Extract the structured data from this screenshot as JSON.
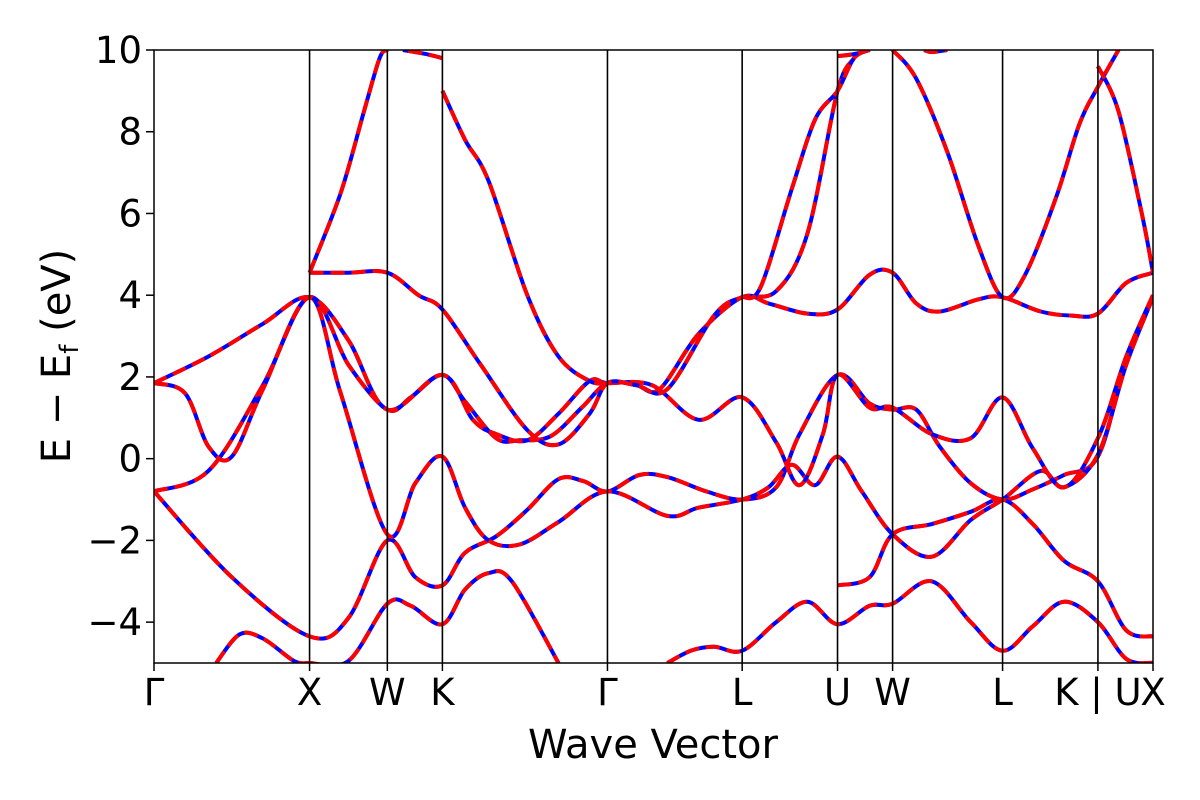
{
  "chart_data": {
    "type": "line",
    "xlabel": "Wave Vector",
    "ylabel_main": "E − E",
    "ylabel_sub": "f",
    "ylabel_unit": " (eV)",
    "ylim": [
      -5,
      10
    ],
    "yticks": [
      -4,
      -2,
      0,
      2,
      4,
      6,
      8,
      10
    ],
    "ytick_labels": [
      "−4",
      "−2",
      "0",
      "2",
      "4",
      "6",
      "8",
      "10"
    ],
    "kpath": [
      {
        "label": "Γ",
        "k": 0.0
      },
      {
        "label": "X",
        "k": 1.0
      },
      {
        "label": "W",
        "k": 1.5
      },
      {
        "label": "K",
        "k": 1.854
      },
      {
        "label": "Γ",
        "k": 2.915
      },
      {
        "label": "L",
        "k": 3.781
      },
      {
        "label": "U",
        "k": 4.394
      },
      {
        "label": "W",
        "k": 4.748
      },
      {
        "label": "L",
        "k": 5.455
      },
      {
        "label": "K | U",
        "k": 6.068
      },
      {
        "label": "X",
        "k": 6.422
      }
    ],
    "grid": false,
    "legend": "none",
    "series_styles": [
      {
        "color": "#0000ff",
        "linestyle": "solid"
      },
      {
        "color": "#ff0000",
        "linestyle": "dashed"
      }
    ],
    "bands": [
      {
        "points": [
          [
            0.0,
            -0.8
          ],
          [
            0.5,
            -2.9
          ],
          [
            1.0,
            -4.35
          ],
          [
            1.25,
            -3.9
          ],
          [
            1.5,
            -2.0
          ],
          [
            1.68,
            -2.9
          ],
          [
            1.854,
            -3.1
          ],
          [
            2.0,
            -2.3
          ],
          [
            2.2,
            -1.9
          ],
          [
            2.4,
            -1.25
          ],
          [
            2.6,
            -0.5
          ],
          [
            2.76,
            -0.55
          ],
          [
            2.915,
            -0.8
          ],
          [
            3.12,
            -0.4
          ],
          [
            3.3,
            -0.45
          ],
          [
            3.55,
            -0.8
          ],
          [
            3.781,
            -1.0
          ],
          [
            4.0,
            -0.7
          ],
          [
            4.15,
            0.6
          ],
          [
            4.394,
            2.05
          ],
          [
            4.6,
            1.35
          ],
          [
            4.748,
            1.2
          ],
          [
            4.9,
            1.2
          ],
          [
            5.05,
            0.3
          ],
          [
            5.25,
            -0.6
          ],
          [
            5.455,
            -1.0
          ],
          [
            5.65,
            -0.75
          ],
          [
            5.85,
            -0.4
          ],
          [
            6.068,
            0.05
          ],
          [
            6.25,
            2.4
          ],
          [
            6.422,
            4.0
          ]
        ]
      },
      {
        "points": [
          [
            0.0,
            -0.8
          ],
          [
            0.35,
            -0.3
          ],
          [
            0.7,
            1.8
          ],
          [
            1.0,
            3.95
          ],
          [
            1.25,
            2.3
          ],
          [
            1.5,
            1.2
          ],
          [
            1.65,
            1.5
          ],
          [
            1.854,
            2.05
          ],
          [
            2.0,
            1.4
          ],
          [
            2.2,
            0.5
          ],
          [
            2.35,
            0.45
          ],
          [
            2.55,
            0.55
          ],
          [
            2.75,
            1.25
          ],
          [
            2.915,
            1.85
          ],
          [
            3.1,
            1.8
          ],
          [
            3.25,
            1.7
          ],
          [
            3.5,
            3.05
          ],
          [
            3.781,
            3.95
          ],
          [
            3.95,
            3.8
          ],
          [
            4.2,
            3.55
          ],
          [
            4.394,
            3.65
          ],
          [
            4.6,
            4.5
          ],
          [
            4.748,
            4.55
          ],
          [
            4.9,
            3.8
          ],
          [
            5.05,
            3.6
          ],
          [
            5.3,
            3.9
          ],
          [
            5.455,
            3.95
          ],
          [
            5.7,
            3.6
          ],
          [
            5.9,
            3.5
          ],
          [
            6.068,
            3.55
          ],
          [
            6.25,
            4.3
          ],
          [
            6.422,
            4.55
          ]
        ]
      },
      {
        "points": [
          [
            0.0,
            1.85
          ],
          [
            0.2,
            1.6
          ],
          [
            0.35,
            0.3
          ],
          [
            0.5,
            0.05
          ],
          [
            0.7,
            1.7
          ],
          [
            1.0,
            3.95
          ],
          [
            1.2,
            1.6
          ],
          [
            1.5,
            -1.85
          ],
          [
            1.68,
            -0.6
          ],
          [
            1.854,
            0.05
          ],
          [
            2.0,
            -1.2
          ],
          [
            2.15,
            -2.0
          ],
          [
            2.35,
            -2.1
          ],
          [
            2.6,
            -1.55
          ],
          [
            2.915,
            -0.8
          ],
          [
            3.3,
            -1.4
          ],
          [
            3.5,
            -1.2
          ],
          [
            3.781,
            -1.0
          ],
          [
            3.95,
            -0.7
          ],
          [
            4.1,
            -0.15
          ],
          [
            4.25,
            -0.65
          ],
          [
            4.394,
            0.05
          ],
          [
            4.55,
            -0.8
          ],
          [
            4.748,
            -1.85
          ],
          [
            5.0,
            -2.4
          ],
          [
            5.25,
            -1.5
          ],
          [
            5.455,
            -1.0
          ],
          [
            5.7,
            -0.3
          ],
          [
            5.85,
            -0.7
          ],
          [
            6.068,
            0.1
          ],
          [
            6.25,
            2.3
          ],
          [
            6.422,
            3.95
          ]
        ]
      },
      {
        "points": [
          [
            0.0,
            1.85
          ],
          [
            0.35,
            2.5
          ],
          [
            0.7,
            3.3
          ],
          [
            1.0,
            3.95
          ],
          [
            1.25,
            2.9
          ],
          [
            1.5,
            1.2
          ],
          [
            1.854,
            2.05
          ],
          [
            2.05,
            0.95
          ],
          [
            2.2,
            0.6
          ],
          [
            2.4,
            0.45
          ],
          [
            2.6,
            1.1
          ],
          [
            2.8,
            1.9
          ],
          [
            2.915,
            1.85
          ],
          [
            3.2,
            1.8
          ],
          [
            3.5,
            0.95
          ],
          [
            3.781,
            1.5
          ],
          [
            4.0,
            0.4
          ],
          [
            4.15,
            -0.65
          ],
          [
            4.3,
            0.6
          ],
          [
            4.394,
            2.05
          ],
          [
            4.6,
            1.25
          ],
          [
            4.748,
            1.25
          ],
          [
            5.0,
            0.6
          ],
          [
            5.25,
            0.5
          ],
          [
            5.455,
            1.5
          ],
          [
            5.65,
            0.25
          ],
          [
            5.85,
            -0.7
          ],
          [
            6.068,
            0.5
          ],
          [
            6.25,
            2.5
          ],
          [
            6.422,
            4.0
          ]
        ]
      },
      {
        "points": [
          [
            1.0,
            4.55
          ],
          [
            1.25,
            4.55
          ],
          [
            1.5,
            4.55
          ],
          [
            1.7,
            4.0
          ],
          [
            1.854,
            3.65
          ],
          [
            2.1,
            2.3
          ],
          [
            2.4,
            0.7
          ],
          [
            2.6,
            0.35
          ],
          [
            2.8,
            1.1
          ],
          [
            2.915,
            1.85
          ],
          [
            3.1,
            1.8
          ],
          [
            3.3,
            1.7
          ],
          [
            3.6,
            3.5
          ],
          [
            3.781,
            3.95
          ],
          [
            4.0,
            4.1
          ],
          [
            4.2,
            5.5
          ],
          [
            4.394,
            9.0
          ],
          [
            4.5,
            9.8
          ]
        ]
      },
      {
        "points": [
          [
            1.0,
            4.55
          ],
          [
            1.2,
            6.5
          ],
          [
            1.35,
            8.5
          ],
          [
            1.45,
            9.8
          ],
          [
            1.5,
            10.0
          ]
        ]
      },
      {
        "points": [
          [
            1.0,
            -5.0
          ],
          [
            1.25,
            -4.95
          ],
          [
            1.5,
            -3.55
          ],
          [
            1.65,
            -3.6
          ],
          [
            1.854,
            -4.05
          ],
          [
            2.0,
            -3.2
          ],
          [
            2.15,
            -2.8
          ],
          [
            2.3,
            -3.0
          ],
          [
            2.6,
            -5.0
          ]
        ]
      },
      {
        "points": [
          [
            0.4,
            -5.0
          ],
          [
            0.55,
            -4.3
          ],
          [
            0.7,
            -4.4
          ],
          [
            0.9,
            -4.95
          ],
          [
            1.0,
            -5.0
          ]
        ]
      },
      {
        "points": [
          [
            3.3,
            -5.0
          ],
          [
            3.45,
            -4.7
          ],
          [
            3.6,
            -4.6
          ],
          [
            3.781,
            -4.7
          ],
          [
            4.0,
            -4.0
          ],
          [
            4.2,
            -3.5
          ],
          [
            4.394,
            -4.05
          ],
          [
            4.6,
            -3.6
          ],
          [
            4.748,
            -3.55
          ],
          [
            5.0,
            -3.0
          ],
          [
            5.25,
            -4.0
          ],
          [
            5.455,
            -4.7
          ],
          [
            5.65,
            -4.1
          ],
          [
            5.85,
            -3.5
          ],
          [
            6.068,
            -4.0
          ],
          [
            6.25,
            -4.9
          ],
          [
            6.422,
            -5.0
          ]
        ]
      },
      {
        "points": [
          [
            4.394,
            -3.1
          ],
          [
            4.6,
            -2.9
          ],
          [
            4.748,
            -1.85
          ],
          [
            5.0,
            -1.6
          ],
          [
            5.25,
            -1.3
          ],
          [
            5.455,
            -1.0
          ],
          [
            5.65,
            -1.6
          ],
          [
            5.85,
            -2.5
          ],
          [
            6.068,
            -3.0
          ],
          [
            6.25,
            -4.2
          ],
          [
            6.422,
            -4.35
          ]
        ]
      },
      {
        "points": [
          [
            3.781,
            3.95
          ],
          [
            3.9,
            4.2
          ],
          [
            4.1,
            6.6
          ],
          [
            4.25,
            8.3
          ],
          [
            4.394,
            9.0
          ],
          [
            4.5,
            9.8
          ],
          [
            4.6,
            10.0
          ]
        ]
      },
      {
        "points": [
          [
            4.748,
            10.0
          ],
          [
            4.9,
            9.3
          ],
          [
            5.1,
            7.5
          ],
          [
            5.3,
            5.2
          ],
          [
            5.455,
            3.95
          ],
          [
            5.6,
            4.5
          ],
          [
            5.8,
            6.4
          ],
          [
            5.95,
            8.2
          ],
          [
            6.068,
            9.1
          ],
          [
            6.2,
            10.0
          ]
        ]
      },
      {
        "points": [
          [
            6.068,
            9.6
          ],
          [
            6.2,
            8.5
          ],
          [
            6.35,
            6.0
          ],
          [
            6.422,
            4.55
          ]
        ]
      },
      {
        "points": [
          [
            1.854,
            9.8
          ],
          [
            1.75,
            9.9
          ],
          [
            1.6,
            10.0
          ]
        ]
      },
      {
        "points": [
          [
            1.854,
            9.0
          ],
          [
            2.0,
            7.8
          ],
          [
            2.15,
            6.8
          ],
          [
            2.4,
            4.0
          ],
          [
            2.6,
            2.5
          ],
          [
            2.8,
            1.9
          ],
          [
            2.915,
            1.85
          ]
        ]
      },
      {
        "points": [
          [
            4.394,
            9.85
          ],
          [
            4.5,
            9.9
          ],
          [
            4.6,
            10.0
          ]
        ]
      },
      {
        "points": [
          [
            4.95,
            10.0
          ],
          [
            5.0,
            9.95
          ],
          [
            5.1,
            10.0
          ]
        ]
      }
    ]
  }
}
